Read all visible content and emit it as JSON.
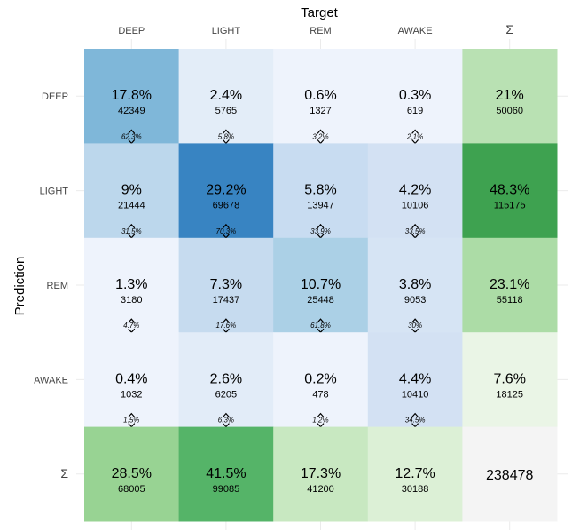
{
  "chart_data": {
    "type": "heatmap",
    "title": "",
    "xlabel": "Target",
    "ylabel": "Prediction",
    "x_categories": [
      "DEEP",
      "LIGHT",
      "REM",
      "AWAKE",
      "Σ"
    ],
    "y_categories": [
      "DEEP",
      "LIGHT",
      "REM",
      "AWAKE",
      "Σ"
    ],
    "cells": [
      [
        {
          "pct": "17.8%",
          "count": "42349",
          "col_pct": "62.3%",
          "fill": "#7fb7d9"
        },
        {
          "pct": "2.4%",
          "count": "5765",
          "col_pct": "5.8%",
          "fill": "#e3edf8"
        },
        {
          "pct": "0.6%",
          "count": "1327",
          "col_pct": "3.2%",
          "fill": "#eef3fc"
        },
        {
          "pct": "0.3%",
          "count": "619",
          "col_pct": "2.1%",
          "fill": "#eef3fc"
        },
        {
          "pct": "21%",
          "count": "50060",
          "col_pct": "",
          "fill": "#b9e1b3"
        }
      ],
      [
        {
          "pct": "9%",
          "count": "21444",
          "col_pct": "31.5%",
          "fill": "#bcd7ec"
        },
        {
          "pct": "29.2%",
          "count": "69678",
          "col_pct": "70.3%",
          "fill": "#3884c2"
        },
        {
          "pct": "5.8%",
          "count": "13947",
          "col_pct": "33.9%",
          "fill": "#c8dcf1"
        },
        {
          "pct": "4.2%",
          "count": "10106",
          "col_pct": "33.5%",
          "fill": "#d3e1f3"
        },
        {
          "pct": "48.3%",
          "count": "115175",
          "col_pct": "",
          "fill": "#3ea250"
        }
      ],
      [
        {
          "pct": "1.3%",
          "count": "3180",
          "col_pct": "4.7%",
          "fill": "#eef3fc"
        },
        {
          "pct": "7.3%",
          "count": "17437",
          "col_pct": "17.6%",
          "fill": "#c6dbef"
        },
        {
          "pct": "10.7%",
          "count": "25448",
          "col_pct": "61.8%",
          "fill": "#abd0e6"
        },
        {
          "pct": "3.8%",
          "count": "9053",
          "col_pct": "30%",
          "fill": "#d6e4f4"
        },
        {
          "pct": "23.1%",
          "count": "55118",
          "col_pct": "",
          "fill": "#acdca6"
        }
      ],
      [
        {
          "pct": "0.4%",
          "count": "1032",
          "col_pct": "1.5%",
          "fill": "#eef3fc"
        },
        {
          "pct": "2.6%",
          "count": "6205",
          "col_pct": "6.3%",
          "fill": "#e2ecf8"
        },
        {
          "pct": "0.2%",
          "count": "478",
          "col_pct": "1.2%",
          "fill": "#eef3fc"
        },
        {
          "pct": "4.4%",
          "count": "10410",
          "col_pct": "34.5%",
          "fill": "#d3e1f3"
        },
        {
          "pct": "7.6%",
          "count": "18125",
          "col_pct": "",
          "fill": "#eaf5e6"
        }
      ],
      [
        {
          "pct": "28.5%",
          "count": "68005",
          "col_pct": "",
          "fill": "#98d393"
        },
        {
          "pct": "41.5%",
          "count": "99085",
          "col_pct": "",
          "fill": "#55b468"
        },
        {
          "pct": "17.3%",
          "count": "41200",
          "col_pct": "",
          "fill": "#c8e8c1"
        },
        {
          "pct": "12.7%",
          "count": "30188",
          "col_pct": "",
          "fill": "#dcf0d6"
        },
        {
          "pct": "238478",
          "count": "",
          "col_pct": "",
          "fill": "#f4f4f4"
        }
      ]
    ],
    "grid": true
  },
  "colors": {
    "text": "#000000",
    "axis_text": "#444444",
    "gridline": "#ebebeb"
  }
}
